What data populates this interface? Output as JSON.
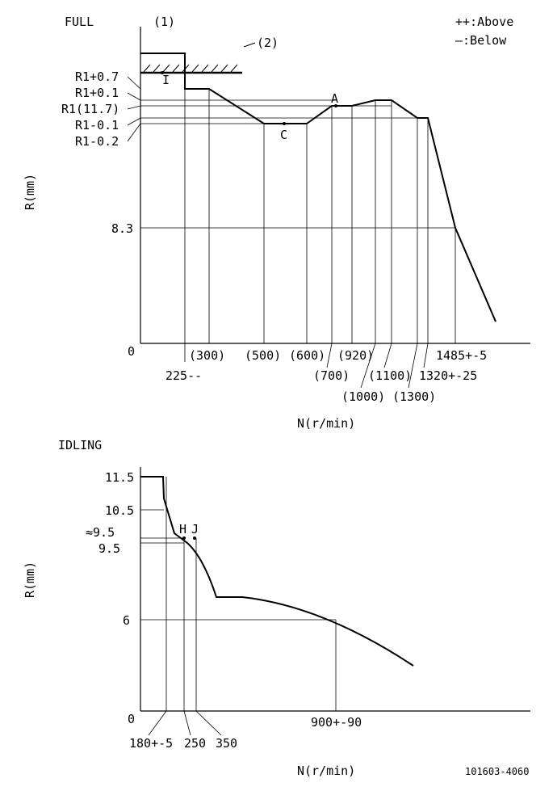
{
  "legend": {
    "above": "++:Above",
    "below": "—:Below"
  },
  "full": {
    "title": "FULL",
    "marker_1": "(1)",
    "marker_2": "(2)",
    "mark_I": "I",
    "mark_A": "A",
    "mark_C": "C",
    "ylabel": "R(mm)",
    "xlabel": "N(r/min)",
    "y_ticks": [
      "R1+0.7",
      "R1+0.1",
      "R1(11.7)",
      "R1-0.1",
      "R1-0.2",
      "8.3",
      "0"
    ],
    "x_ticks": [
      "225--",
      "(300)",
      "(500)",
      "(600)",
      "(700)",
      "(920)",
      "(1000)",
      "(1100)",
      "(1300)",
      "1320+-25",
      "1485+-5"
    ]
  },
  "idling": {
    "title": "IDLING",
    "ylabel": "R(mm)",
    "xlabel": "N(r/min)",
    "y_ticks": [
      "11.5",
      "10.5",
      "≈9.5",
      "9.5",
      "6",
      "0"
    ],
    "x_ticks": [
      "180+-5",
      "250",
      "350",
      "900+-90"
    ],
    "mark_H": "H",
    "mark_J": "J"
  },
  "footer_code": "101603-4060"
}
